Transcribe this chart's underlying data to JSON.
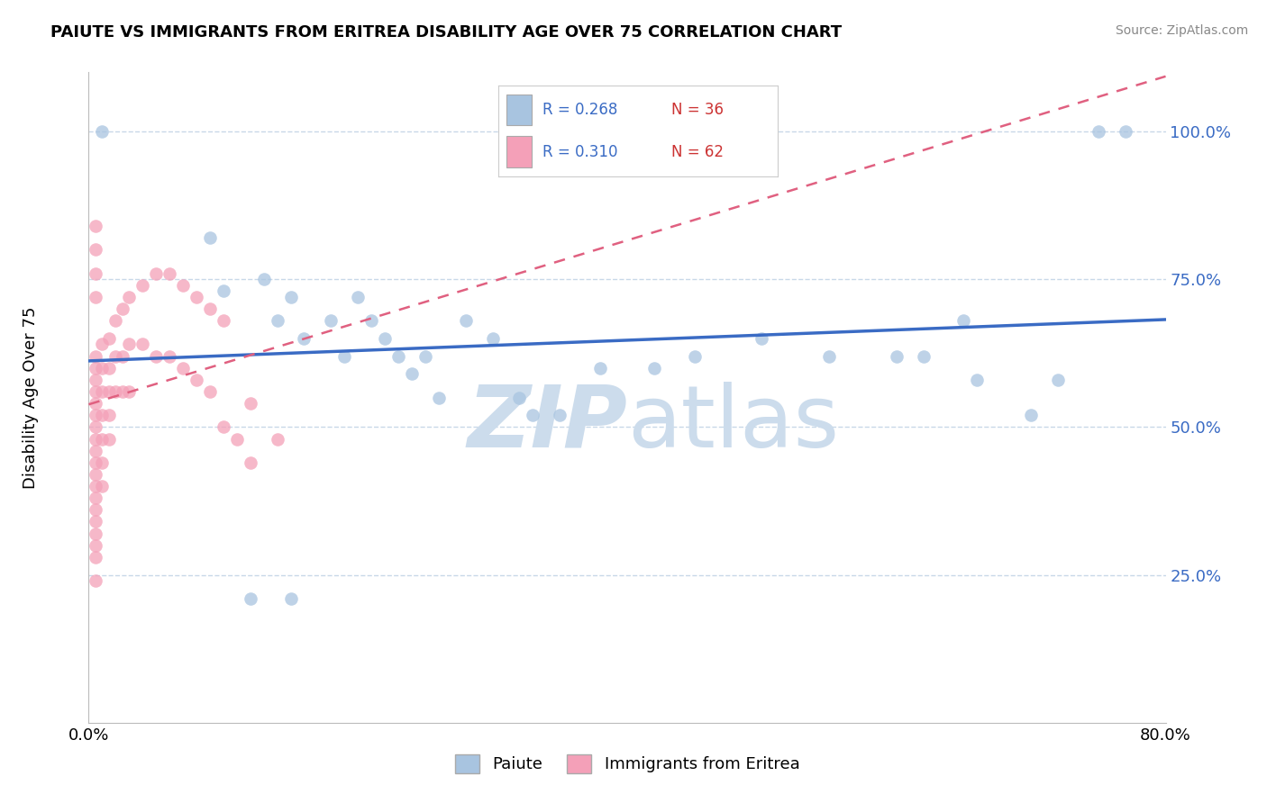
{
  "title": "PAIUTE VS IMMIGRANTS FROM ERITREA DISABILITY AGE OVER 75 CORRELATION CHART",
  "source": "Source: ZipAtlas.com",
  "ylabel": "Disability Age Over 75",
  "xlim": [
    0.0,
    0.8
  ],
  "ylim": [
    0.0,
    1.1
  ],
  "xticks": [
    0.0,
    0.1,
    0.2,
    0.3,
    0.4,
    0.5,
    0.6,
    0.7,
    0.8
  ],
  "ytick_positions": [
    0.25,
    0.5,
    0.75,
    1.0
  ],
  "ytick_labels": [
    "25.0%",
    "50.0%",
    "75.0%",
    "100.0%"
  ],
  "paiute_R": 0.268,
  "paiute_N": 36,
  "eritrea_R": 0.31,
  "eritrea_N": 62,
  "paiute_color": "#a8c4e0",
  "eritrea_color": "#f4a0b8",
  "paiute_line_color": "#3a6bc4",
  "eritrea_line_color": "#e06080",
  "watermark_color": "#ccdcec",
  "paiute_scatter": [
    [
      0.01,
      1.0
    ],
    [
      0.09,
      0.82
    ],
    [
      0.1,
      0.73
    ],
    [
      0.13,
      0.75
    ],
    [
      0.14,
      0.68
    ],
    [
      0.15,
      0.72
    ],
    [
      0.16,
      0.65
    ],
    [
      0.18,
      0.68
    ],
    [
      0.19,
      0.62
    ],
    [
      0.2,
      0.72
    ],
    [
      0.21,
      0.68
    ],
    [
      0.22,
      0.65
    ],
    [
      0.23,
      0.62
    ],
    [
      0.24,
      0.59
    ],
    [
      0.25,
      0.62
    ],
    [
      0.26,
      0.55
    ],
    [
      0.28,
      0.68
    ],
    [
      0.3,
      0.65
    ],
    [
      0.32,
      0.55
    ],
    [
      0.33,
      0.52
    ],
    [
      0.35,
      0.52
    ],
    [
      0.38,
      0.6
    ],
    [
      0.42,
      0.6
    ],
    [
      0.45,
      0.62
    ],
    [
      0.5,
      0.65
    ],
    [
      0.55,
      0.62
    ],
    [
      0.6,
      0.62
    ],
    [
      0.62,
      0.62
    ],
    [
      0.65,
      0.68
    ],
    [
      0.66,
      0.58
    ],
    [
      0.7,
      0.52
    ],
    [
      0.72,
      0.58
    ],
    [
      0.75,
      1.0
    ],
    [
      0.77,
      1.0
    ],
    [
      0.12,
      0.21
    ],
    [
      0.15,
      0.21
    ]
  ],
  "eritrea_scatter": [
    [
      0.005,
      0.62
    ],
    [
      0.005,
      0.6
    ],
    [
      0.005,
      0.58
    ],
    [
      0.005,
      0.56
    ],
    [
      0.005,
      0.54
    ],
    [
      0.005,
      0.52
    ],
    [
      0.005,
      0.5
    ],
    [
      0.005,
      0.48
    ],
    [
      0.005,
      0.46
    ],
    [
      0.005,
      0.44
    ],
    [
      0.005,
      0.42
    ],
    [
      0.005,
      0.4
    ],
    [
      0.005,
      0.38
    ],
    [
      0.005,
      0.36
    ],
    [
      0.005,
      0.34
    ],
    [
      0.005,
      0.32
    ],
    [
      0.005,
      0.3
    ],
    [
      0.005,
      0.28
    ],
    [
      0.01,
      0.64
    ],
    [
      0.01,
      0.6
    ],
    [
      0.01,
      0.56
    ],
    [
      0.01,
      0.52
    ],
    [
      0.01,
      0.48
    ],
    [
      0.01,
      0.44
    ],
    [
      0.01,
      0.4
    ],
    [
      0.015,
      0.65
    ],
    [
      0.015,
      0.6
    ],
    [
      0.015,
      0.56
    ],
    [
      0.015,
      0.52
    ],
    [
      0.015,
      0.48
    ],
    [
      0.02,
      0.68
    ],
    [
      0.02,
      0.62
    ],
    [
      0.02,
      0.56
    ],
    [
      0.025,
      0.7
    ],
    [
      0.025,
      0.62
    ],
    [
      0.025,
      0.56
    ],
    [
      0.03,
      0.72
    ],
    [
      0.03,
      0.64
    ],
    [
      0.03,
      0.56
    ],
    [
      0.04,
      0.74
    ],
    [
      0.04,
      0.64
    ],
    [
      0.05,
      0.76
    ],
    [
      0.05,
      0.62
    ],
    [
      0.06,
      0.76
    ],
    [
      0.06,
      0.62
    ],
    [
      0.07,
      0.74
    ],
    [
      0.07,
      0.6
    ],
    [
      0.08,
      0.72
    ],
    [
      0.08,
      0.58
    ],
    [
      0.09,
      0.7
    ],
    [
      0.09,
      0.56
    ],
    [
      0.1,
      0.68
    ],
    [
      0.1,
      0.5
    ],
    [
      0.11,
      0.48
    ],
    [
      0.12,
      0.54
    ],
    [
      0.12,
      0.44
    ],
    [
      0.14,
      0.48
    ],
    [
      0.005,
      0.84
    ],
    [
      0.005,
      0.8
    ],
    [
      0.005,
      0.76
    ],
    [
      0.005,
      0.72
    ],
    [
      0.005,
      0.24
    ]
  ]
}
